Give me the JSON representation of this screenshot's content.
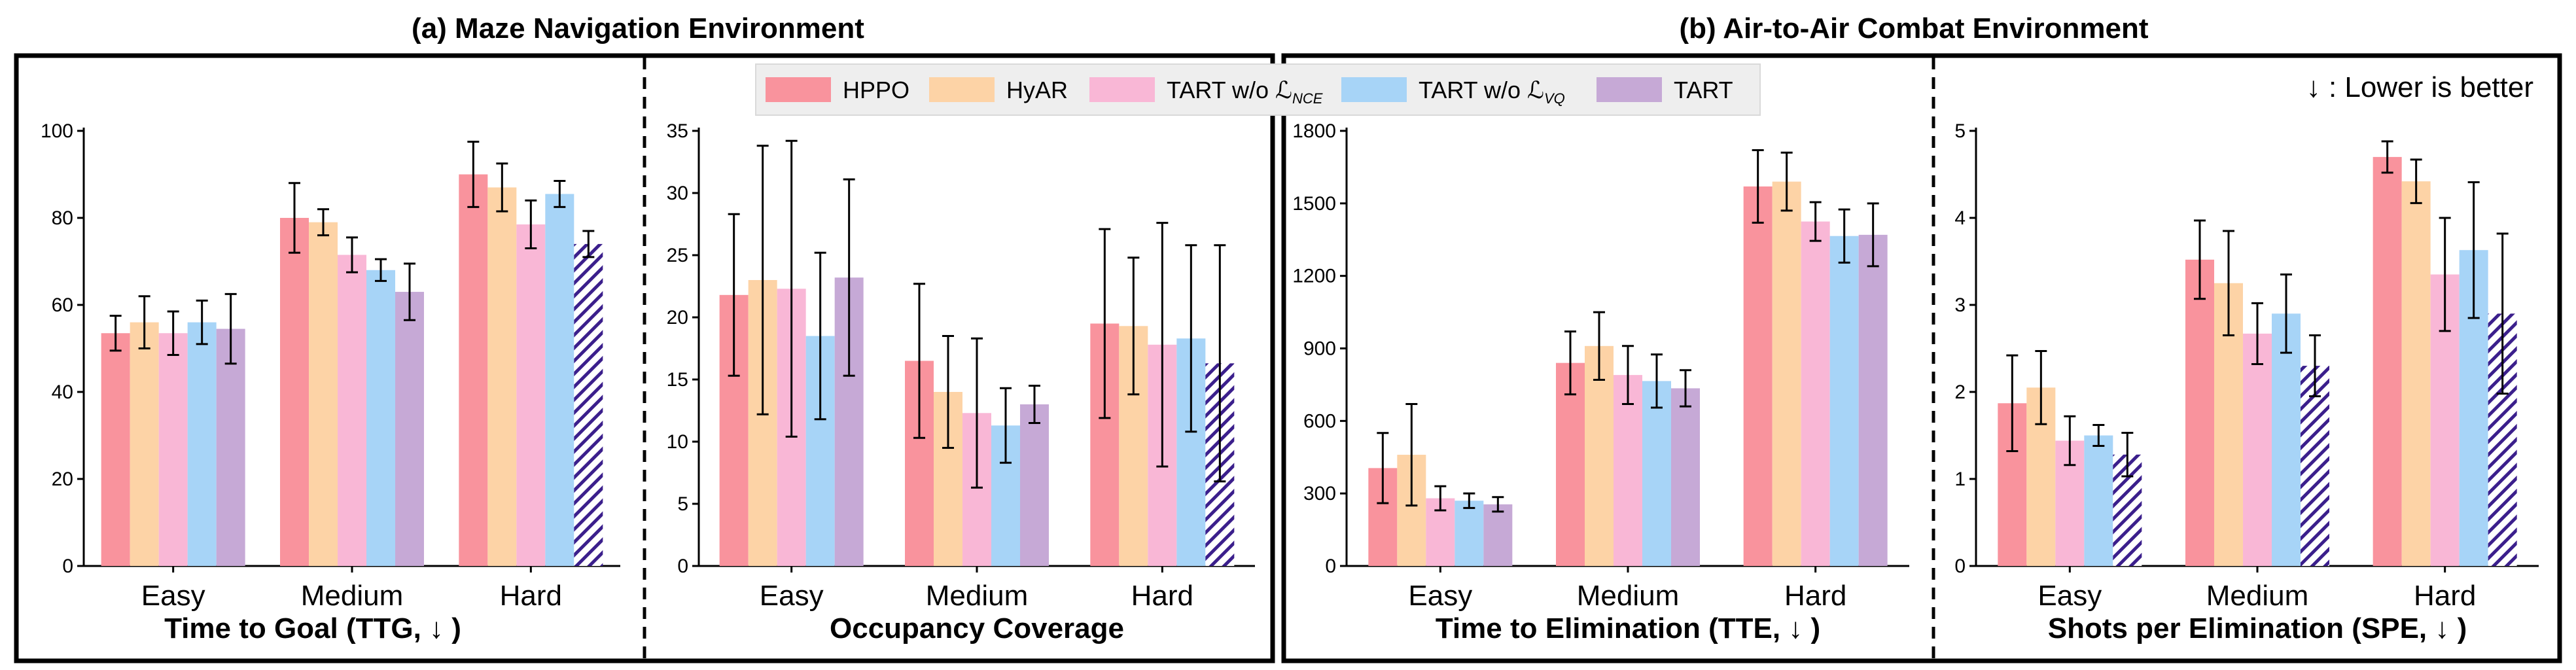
{
  "titles": {
    "left": "(a) Maze Navigation Environment",
    "right": "(b) Air-to-Air Combat Environment"
  },
  "legend": [
    {
      "label": "HPPO",
      "sub": "",
      "color": "#f9939d"
    },
    {
      "label": "HyAR",
      "sub": "",
      "color": "#fdd3a6"
    },
    {
      "label": "TART w/o ℒ",
      "sub": "NCE",
      "color": "#f9b7d6"
    },
    {
      "label": "TART w/o ℒ",
      "sub": "VQ",
      "color": "#a7d4f7"
    },
    {
      "label": "TART",
      "sub": "",
      "color": "#c6a9d6"
    }
  ],
  "note": "↓ : Lower is better",
  "hatch_color": "#3b1f8c",
  "chart_data": [
    {
      "type": "bar",
      "id": "ttg",
      "xlabel": "Time to Goal (TTG, ↓ )",
      "categories": [
        "Easy",
        "Medium",
        "Hard"
      ],
      "ylim": [
        0,
        100
      ],
      "yticks": [
        "0",
        "20",
        "40",
        "60",
        "80",
        "100"
      ],
      "yticks_values": [
        0,
        20,
        40,
        60,
        80,
        100
      ],
      "series": [
        {
          "name": "HPPO",
          "values": [
            53.5,
            80.0,
            90.0
          ],
          "err": [
            4.0,
            8.0,
            7.5
          ]
        },
        {
          "name": "HyAR",
          "values": [
            56.0,
            79.0,
            87.0
          ],
          "err": [
            6.0,
            3.0,
            5.5
          ]
        },
        {
          "name": "TART w/o L_NCE",
          "values": [
            53.5,
            71.5,
            78.5
          ],
          "err": [
            5.0,
            4.0,
            5.5
          ]
        },
        {
          "name": "TART w/o L_VQ",
          "values": [
            56.0,
            68.0,
            85.5
          ],
          "err": [
            5.0,
            2.5,
            3.0
          ]
        },
        {
          "name": "TART",
          "values": [
            54.5,
            63.0,
            74.0
          ],
          "err": [
            8.0,
            6.5,
            3.0
          ]
        }
      ],
      "hatched": [
        [
          false,
          false,
          true
        ]
      ]
    },
    {
      "type": "bar",
      "id": "occupancy",
      "xlabel": "Occupancy Coverage",
      "categories": [
        "Easy",
        "Medium",
        "Hard"
      ],
      "ylim": [
        0,
        35
      ],
      "yticks": [
        "0",
        "5",
        "10",
        "15",
        "20",
        "25",
        "30",
        "35"
      ],
      "yticks_values": [
        0,
        5,
        10,
        15,
        20,
        25,
        30,
        35
      ],
      "series": [
        {
          "name": "HPPO",
          "values": [
            21.8,
            16.5,
            19.5
          ],
          "err": [
            6.5,
            6.2,
            7.6
          ]
        },
        {
          "name": "HyAR",
          "values": [
            23.0,
            14.0,
            19.3
          ],
          "err": [
            10.8,
            4.5,
            5.5
          ]
        },
        {
          "name": "TART w/o L_NCE",
          "values": [
            22.3,
            12.3,
            17.8
          ],
          "err": [
            11.9,
            6.0,
            9.8
          ]
        },
        {
          "name": "TART w/o L_VQ",
          "values": [
            18.5,
            11.3,
            18.3
          ],
          "err": [
            6.7,
            3.0,
            7.5
          ]
        },
        {
          "name": "TART",
          "values": [
            23.2,
            13.0,
            16.3
          ],
          "err": [
            7.9,
            1.5,
            9.5
          ]
        }
      ],
      "hatched": [
        [
          false,
          false,
          true
        ]
      ]
    },
    {
      "type": "bar",
      "id": "tte",
      "xlabel": "Time to Elimination (TTE, ↓ )",
      "categories": [
        "Easy",
        "Medium",
        "Hard"
      ],
      "ylim": [
        0,
        1800
      ],
      "yticks": [
        "0",
        "300",
        "600",
        "900",
        "1200",
        "1500",
        "1800"
      ],
      "yticks_values": [
        0,
        300,
        600,
        900,
        1200,
        1500,
        1800
      ],
      "series": [
        {
          "name": "HPPO",
          "values": [
            405,
            840,
            1570
          ],
          "err": [
            145,
            130,
            150
          ]
        },
        {
          "name": "HyAR",
          "values": [
            460,
            910,
            1590
          ],
          "err": [
            210,
            140,
            120
          ]
        },
        {
          "name": "TART w/o L_NCE",
          "values": [
            280,
            790,
            1425
          ],
          "err": [
            50,
            120,
            80
          ]
        },
        {
          "name": "TART w/o L_VQ",
          "values": [
            270,
            765,
            1365
          ],
          "err": [
            30,
            110,
            110
          ]
        },
        {
          "name": "TART",
          "values": [
            255,
            735,
            1370
          ],
          "err": [
            30,
            75,
            130
          ]
        }
      ],
      "hatched": [
        [
          false,
          false,
          false
        ]
      ]
    },
    {
      "type": "bar",
      "id": "spe",
      "xlabel": "Shots per Elimination (SPE, ↓ )",
      "categories": [
        "Easy",
        "Medium",
        "Hard"
      ],
      "ylim": [
        0,
        5
      ],
      "yticks": [
        "0",
        "1",
        "2",
        "3",
        "4",
        "5"
      ],
      "yticks_values": [
        0,
        1,
        2,
        3,
        4,
        5
      ],
      "series": [
        {
          "name": "HPPO",
          "values": [
            1.87,
            3.52,
            4.7
          ],
          "err": [
            0.55,
            0.45,
            0.18
          ]
        },
        {
          "name": "HyAR",
          "values": [
            2.05,
            3.25,
            4.42
          ],
          "err": [
            0.42,
            0.6,
            0.25
          ]
        },
        {
          "name": "TART w/o L_NCE",
          "values": [
            1.44,
            2.67,
            3.35
          ],
          "err": [
            0.28,
            0.35,
            0.65
          ]
        },
        {
          "name": "TART w/o L_VQ",
          "values": [
            1.5,
            2.9,
            3.63
          ],
          "err": [
            0.12,
            0.45,
            0.78
          ]
        },
        {
          "name": "TART",
          "values": [
            1.28,
            2.3,
            2.9
          ],
          "err": [
            0.25,
            0.35,
            0.92
          ]
        }
      ],
      "hatched": [
        [
          true,
          true,
          true
        ]
      ]
    }
  ]
}
